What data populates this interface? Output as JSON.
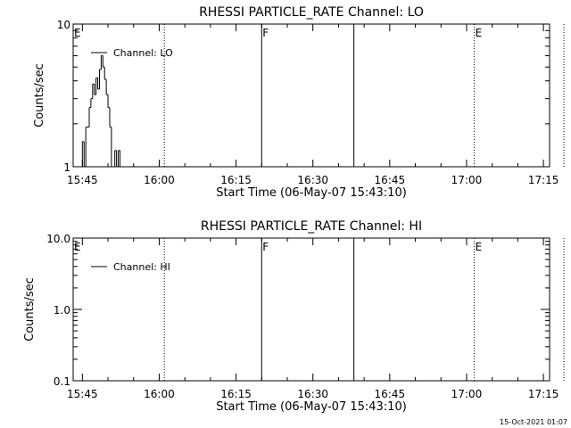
{
  "footer_timestamp": "15-Oct-2021 01:07",
  "chart_data": [
    {
      "type": "line",
      "title": "RHESSI PARTICLE_RATE Channel: LO",
      "xlabel": "Start Time (06-May-07 15:43:10)",
      "ylabel": "Counts/sec",
      "y_scale": "log",
      "ylim": [
        1,
        10
      ],
      "y_ticks": [
        {
          "v": 1,
          "label": "1"
        },
        {
          "v": 10,
          "label": "10"
        }
      ],
      "x_range_minutes": [
        15.72,
        17.27
      ],
      "x_ticks": [
        {
          "t": "15:45",
          "label": "15:45"
        },
        {
          "t": "16:00",
          "label": "16:00"
        },
        {
          "t": "16:15",
          "label": "16:15"
        },
        {
          "t": "16:30",
          "label": "16:30"
        },
        {
          "t": "16:45",
          "label": "16:45"
        },
        {
          "t": "17:00",
          "label": "17:00"
        },
        {
          "t": "17:15",
          "label": "17:15"
        }
      ],
      "grid": false,
      "legend_position": "top-left",
      "series": [
        {
          "name": "Channel: LO",
          "step": true,
          "points": [
            [
              "15:44:20",
              0.8
            ],
            [
              "15:44:40",
              1.0
            ],
            [
              "15:45:00",
              1.5
            ],
            [
              "15:45:20",
              0.8
            ],
            [
              "15:45:40",
              1.9
            ],
            [
              "15:46:00",
              1.9
            ],
            [
              "15:46:20",
              2.6
            ],
            [
              "15:46:40",
              3.0
            ],
            [
              "15:47:00",
              3.8
            ],
            [
              "15:47:20",
              3.2
            ],
            [
              "15:47:40",
              4.2
            ],
            [
              "15:48:00",
              3.5
            ],
            [
              "15:48:20",
              4.8
            ],
            [
              "15:48:40",
              6.0
            ],
            [
              "15:49:00",
              5.0
            ],
            [
              "15:49:20",
              4.1
            ],
            [
              "15:49:40",
              3.2
            ],
            [
              "15:50:00",
              2.6
            ],
            [
              "15:50:20",
              1.9
            ],
            [
              "15:50:40",
              1.0
            ],
            [
              "15:51:00",
              0.8
            ],
            [
              "15:51:20",
              1.3
            ],
            [
              "15:51:40",
              0.8
            ],
            [
              "15:52:00",
              1.3
            ],
            [
              "15:52:20",
              0.8
            ]
          ]
        }
      ],
      "markers": [
        {
          "t": "16:01:00",
          "style": "dotted",
          "label": ""
        },
        {
          "t": "16:20:00",
          "style": "solid",
          "label": "F"
        },
        {
          "t": "16:38:00",
          "style": "solid",
          "label": ""
        },
        {
          "t": "17:01:30",
          "style": "dotted",
          "label": "E"
        },
        {
          "t": "17:19:00",
          "style": "dotted",
          "label": ""
        }
      ],
      "edge_label": "E"
    },
    {
      "type": "line",
      "title": "RHESSI PARTICLE_RATE Channel: HI",
      "xlabel": "Start Time (06-May-07 15:43:10)",
      "ylabel": "Counts/sec",
      "y_scale": "log",
      "ylim": [
        0.1,
        10
      ],
      "y_ticks": [
        {
          "v": 0.1,
          "label": "0.1"
        },
        {
          "v": 1,
          "label": "1.0"
        },
        {
          "v": 10,
          "label": "10.0"
        }
      ],
      "x_range_minutes": [
        15.72,
        17.27
      ],
      "x_ticks": [
        {
          "t": "15:45",
          "label": "15:45"
        },
        {
          "t": "16:00",
          "label": "16:00"
        },
        {
          "t": "16:15",
          "label": "16:15"
        },
        {
          "t": "16:30",
          "label": "16:30"
        },
        {
          "t": "16:45",
          "label": "16:45"
        },
        {
          "t": "17:00",
          "label": "17:00"
        },
        {
          "t": "17:15",
          "label": "17:15"
        }
      ],
      "grid": false,
      "legend_position": "top-left",
      "series": [
        {
          "name": "Channel: HI",
          "step": true,
          "points": []
        }
      ],
      "markers": [
        {
          "t": "16:01:00",
          "style": "dotted",
          "label": ""
        },
        {
          "t": "16:20:00",
          "style": "solid",
          "label": "F"
        },
        {
          "t": "16:38:00",
          "style": "solid",
          "label": ""
        },
        {
          "t": "17:01:30",
          "style": "dotted",
          "label": "E"
        },
        {
          "t": "17:19:00",
          "style": "dotted",
          "label": ""
        }
      ],
      "edge_label": "E"
    }
  ]
}
